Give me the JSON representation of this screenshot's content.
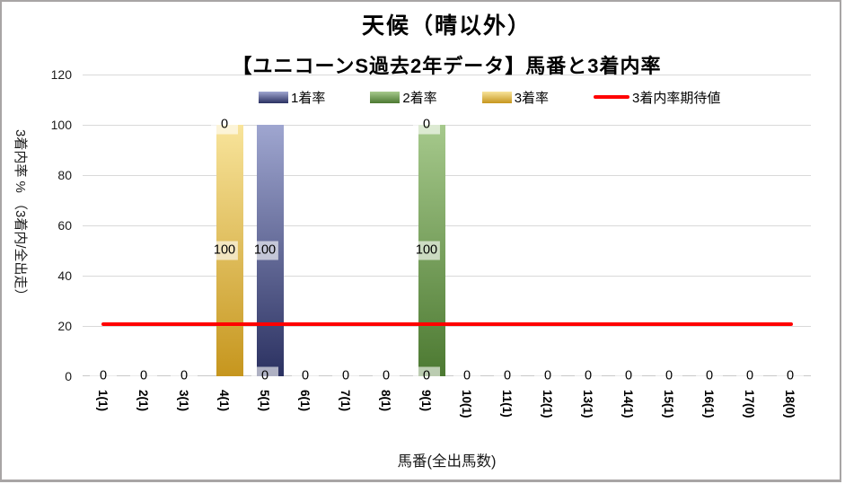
{
  "chart_data": {
    "type": "bar",
    "stacked": true,
    "title": "天候（晴以外）",
    "subtitle": "【ユニコーンS過去2年データ】馬番と3着内率",
    "xlabel": "馬番(全出馬数)",
    "ylabel": "3着内率 % （3着内/全出走）",
    "ylim": [
      0,
      120
    ],
    "yticks": [
      120,
      100,
      80,
      60,
      40,
      20,
      0
    ],
    "grid": true,
    "legend_position": "top",
    "gridline_color": "#d9d9d9",
    "categories": [
      "1(1)",
      "2(1)",
      "3(1)",
      "4(1)",
      "5(1)",
      "6(1)",
      "7(1)",
      "8(1)",
      "9(1)",
      "10(1)",
      "11(1)",
      "12(1)",
      "13(1)",
      "14(1)",
      "15(1)",
      "16(1)",
      "17(0)",
      "18(0)"
    ],
    "series": [
      {
        "name": "1着率",
        "colors": {
          "top": "#9fa6d0",
          "bottom": "#2b3161"
        },
        "values": [
          0,
          0,
          0,
          0,
          100,
          0,
          0,
          0,
          0,
          0,
          0,
          0,
          0,
          0,
          0,
          0,
          0,
          0
        ]
      },
      {
        "name": "2着率",
        "colors": {
          "top": "#a6c98c",
          "bottom": "#4c7931"
        },
        "values": [
          0,
          0,
          0,
          0,
          0,
          0,
          0,
          0,
          100,
          0,
          0,
          0,
          0,
          0,
          0,
          0,
          0,
          0
        ]
      },
      {
        "name": "3着率",
        "colors": {
          "top": "#f8e49b",
          "bottom": "#c6961e"
        },
        "values": [
          0,
          0,
          0,
          100,
          0,
          0,
          0,
          0,
          0,
          0,
          0,
          0,
          0,
          0,
          0,
          0,
          0,
          0
        ]
      }
    ],
    "stack_order_bottom_to_top": [
      "3着率",
      "2着率",
      "1着率"
    ],
    "expected_line": {
      "name": "3着内率期待値",
      "color": "#ff0000",
      "value": 20.7
    },
    "data_labels_visible": true
  }
}
